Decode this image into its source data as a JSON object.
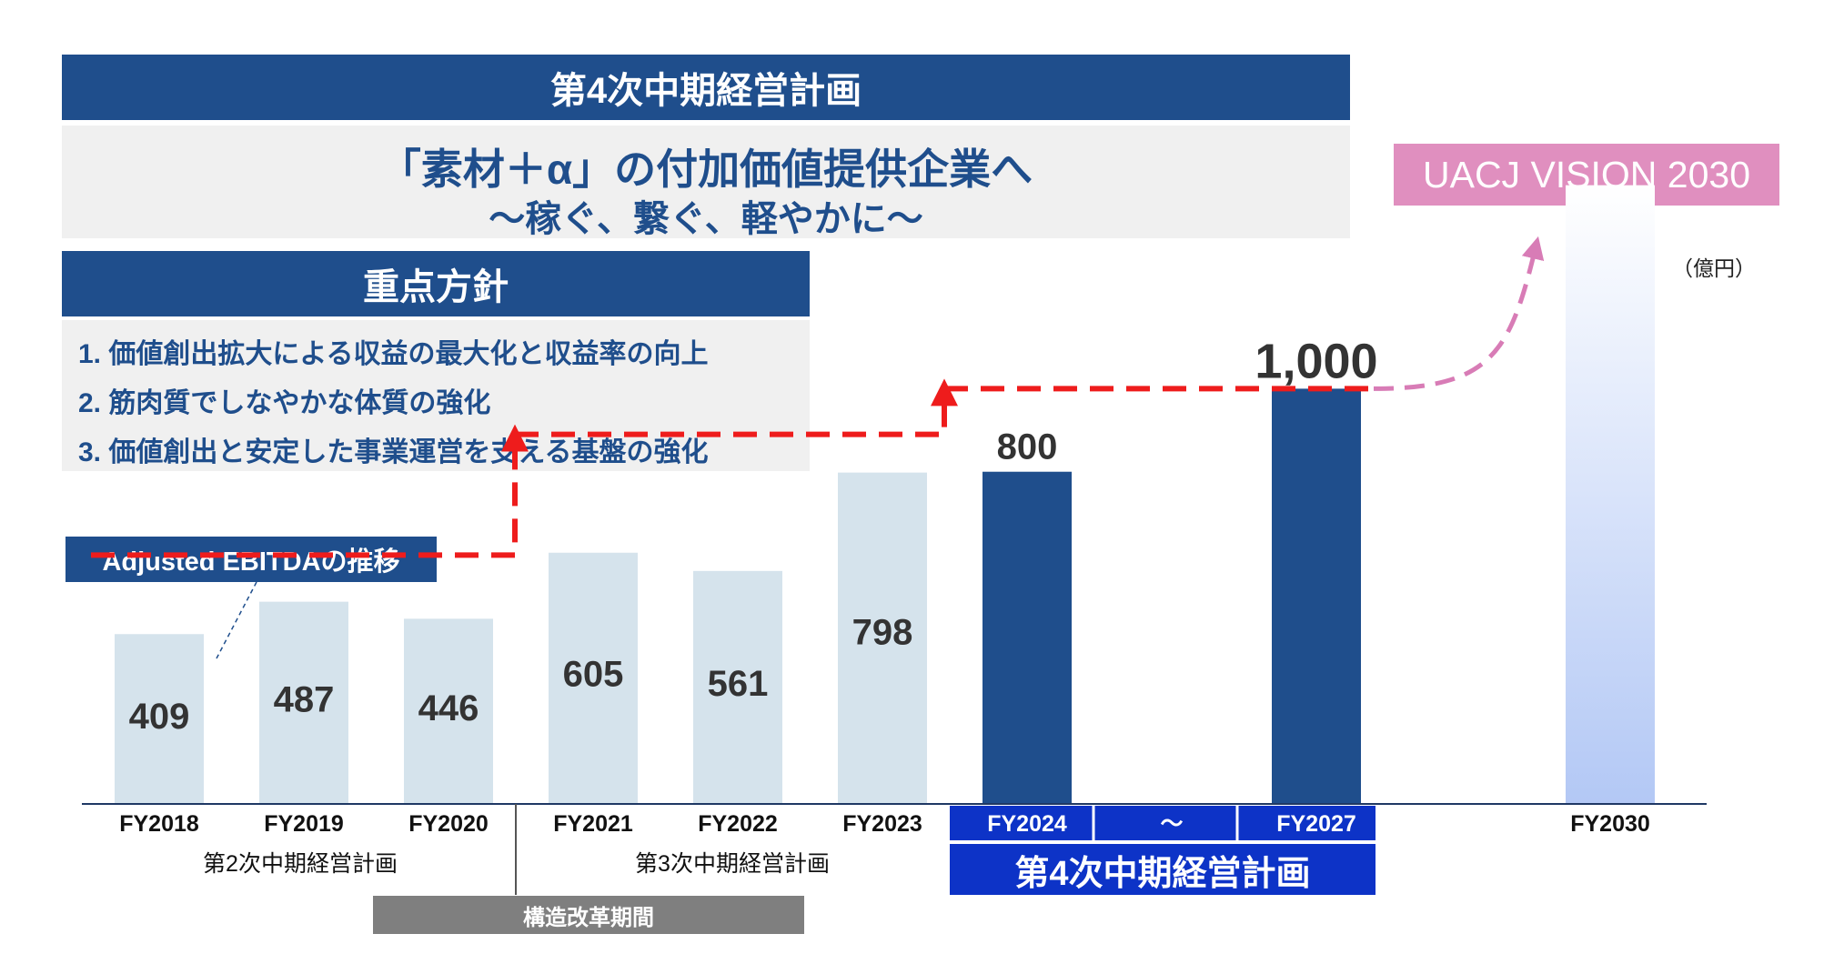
{
  "header": {
    "plan_title": "第4次中期経営計画",
    "tagline_main": "「素材＋α」の付加価値提供企業へ",
    "tagline_sub": "～稼ぐ、繋ぐ、軽やかに～",
    "vision_label": "UACJ VISION 2030"
  },
  "policy": {
    "title": "重点方針",
    "items": [
      "1. 価値創出拡大による収益の最大化と収益率の向上",
      "2. 筋肉質でしなやかな体質の強化",
      "3. 価値創出と安定した事業運営を支える基盤の強化"
    ]
  },
  "chart_data": {
    "type": "bar",
    "title": "",
    "legend_label": "Adjusted EBITDAの推移",
    "unit": "（億円）",
    "categories": [
      "FY2018",
      "FY2019",
      "FY2020",
      "FY2021",
      "FY2022",
      "FY2023",
      "FY2024",
      "～",
      "FY2027",
      "FY2030"
    ],
    "values": [
      409,
      487,
      446,
      605,
      561,
      798,
      800,
      null,
      1000,
      null
    ],
    "value_labels": [
      "409",
      "487",
      "446",
      "605",
      "561",
      "798",
      "800",
      "",
      "1,000",
      ""
    ],
    "bar_styles": [
      "actual",
      "actual",
      "actual",
      "actual",
      "actual",
      "actual",
      "plan",
      "none",
      "plan",
      "vision"
    ],
    "vision_bar_height_ratio": 1.49,
    "ylim": [
      0,
      1600
    ],
    "grid": false,
    "step_levels": [
      446,
      798,
      1000
    ],
    "colors": {
      "actual": "#d5e3ec",
      "plan": "#1f4e8c",
      "vision_top": "#ffffff",
      "vision_bottom": "#b3c8f5",
      "step_line": "#ee1c1c",
      "vision_arrow": "#d87cb6"
    }
  },
  "periods": {
    "plan2": "第2次中期経営計画",
    "plan3": "第3次中期経営計画",
    "plan4": "第4次中期経営計画",
    "reform": "構造改革期間"
  }
}
